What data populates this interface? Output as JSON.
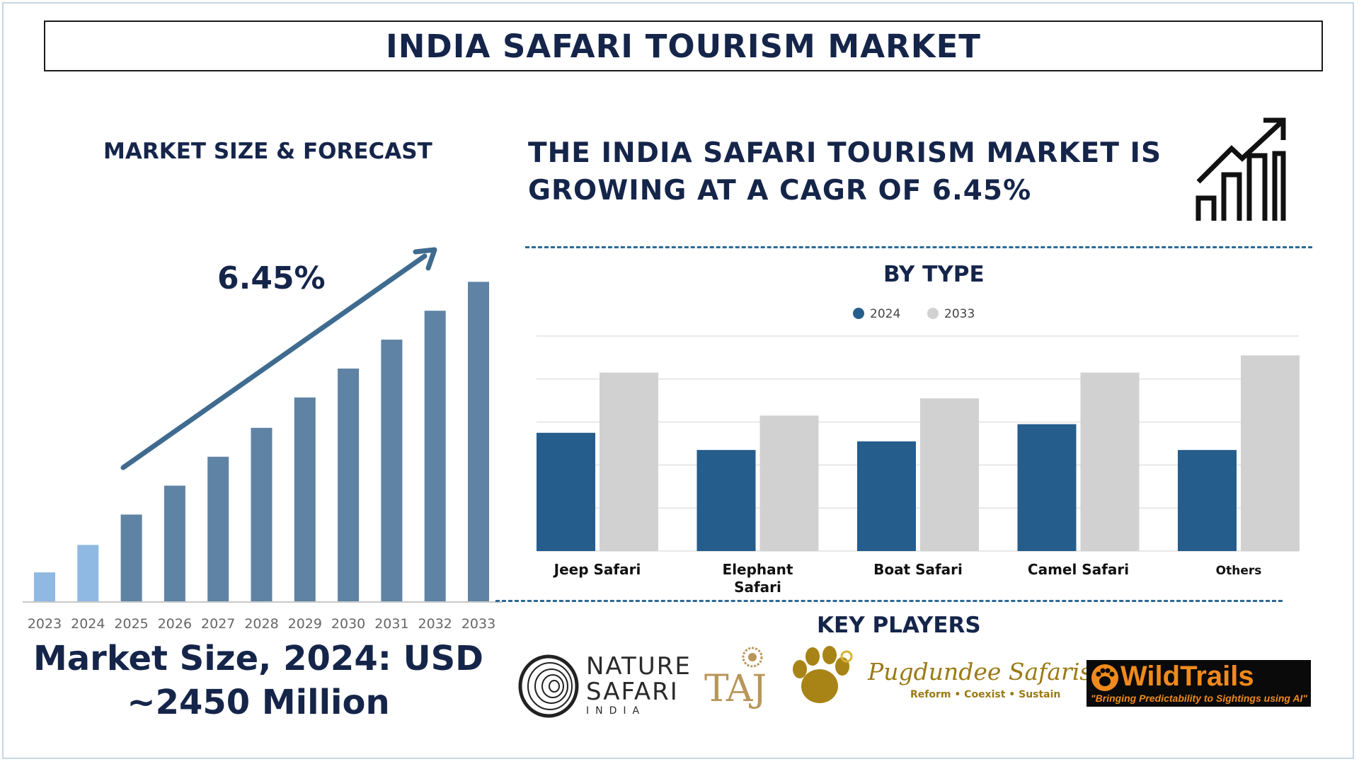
{
  "title": "INDIA SAFARI TOURISM MARKET",
  "left_heading": "MARKET SIZE & FORECAST",
  "cagr_label": "6.45%",
  "headline_line1": "THE INDIA SAFARI TOURISM MARKET IS",
  "headline_line2": "GROWING AT A CAGR OF 6.45%",
  "by_type_heading": "BY TYPE",
  "key_players_heading": "KEY PLAYERS",
  "market_size_line1": "Market Size, 2024: USD",
  "market_size_line2": "~2450 Million",
  "colors": {
    "navy": "#15254a",
    "bar_2024": "#255d8d",
    "bar_2033": "#d1d1d1",
    "forecast_bar": "#5f83a5",
    "history_bar": "#8fb9e2",
    "arrow": "#3f6b8f"
  },
  "chart_data": [
    {
      "type": "bar",
      "categories": [
        "2023",
        "2024",
        "2025",
        "2026",
        "2027",
        "2028",
        "2029",
        "2030",
        "2031",
        "2032",
        "2033"
      ],
      "values": [
        1.0,
        1.95,
        3.0,
        4.0,
        5.0,
        6.0,
        7.05,
        8.05,
        9.05,
        10.05,
        11.05
      ],
      "highlight_first": 2,
      "xlabel": "",
      "ylabel": "",
      "ylim": [
        0,
        11.5
      ],
      "grid": false
    },
    {
      "type": "bar",
      "categories": [
        "Jeep Safari",
        "Elephant Safari",
        "Boat Safari",
        "Camel Safari",
        "Others"
      ],
      "series": [
        {
          "name": "2024",
          "values": [
            2.75,
            2.35,
            2.55,
            2.95,
            2.35
          ]
        },
        {
          "name": "2033",
          "values": [
            4.15,
            3.15,
            3.55,
            4.15,
            4.55
          ]
        }
      ],
      "ylim": [
        0,
        5
      ],
      "grid": true,
      "legend": "top-center"
    }
  ],
  "players": [
    {
      "name": "nature-safari-india",
      "line1": "NATURE",
      "line2": "SAFARI",
      "line3": "INDIA"
    },
    {
      "name": "taj",
      "text": "TAJ"
    },
    {
      "name": "pugdundee-safaris",
      "text": "Pugdundee Safaris",
      "tagline": "Reform • Coexist • Sustain"
    },
    {
      "name": "wildtrails",
      "text": "WildTrails",
      "tagline": "\"Bringing Predictability to Sightings using AI\""
    }
  ]
}
